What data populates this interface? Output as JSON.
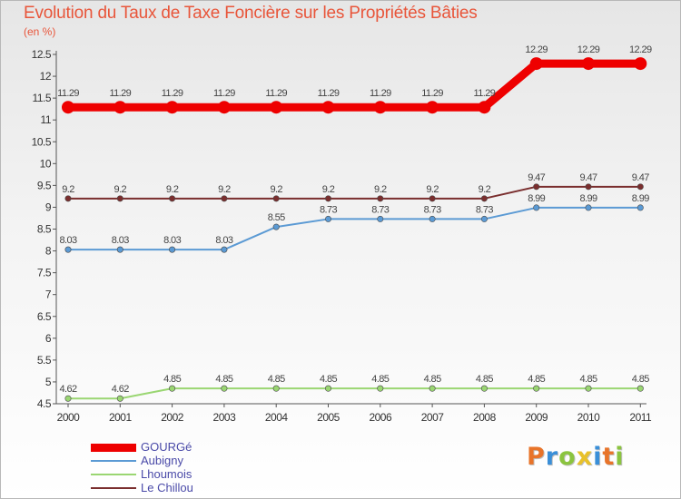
{
  "chart_data": {
    "type": "line",
    "title": "Evolution du Taux de Taxe Foncière sur les Propriétés Bâties",
    "ylabel": "(en %)",
    "xlabel": "",
    "categories": [
      "2000",
      "2001",
      "2002",
      "2003",
      "2004",
      "2005",
      "2006",
      "2007",
      "2008",
      "2009",
      "2010",
      "2011"
    ],
    "ylim": [
      4.5,
      12.5
    ],
    "yticks": [
      "4.5",
      "5",
      "5.5",
      "6",
      "6.5",
      "7",
      "7.5",
      "8",
      "8.5",
      "9",
      "9.5",
      "10",
      "10.5",
      "11",
      "11.5",
      "12",
      "12.5"
    ],
    "series": [
      {
        "name": "GOURGé",
        "color": "#ee0000",
        "values": [
          11.29,
          11.29,
          11.29,
          11.29,
          11.29,
          11.29,
          11.29,
          11.29,
          11.29,
          12.29,
          12.29,
          12.29
        ],
        "labels": [
          "11.29",
          "11.29",
          "11.29",
          "11.29",
          "11.29",
          "11.29",
          "11.29",
          "11.29",
          "11.29",
          "12.29",
          "12.29",
          "12.29"
        ]
      },
      {
        "name": "Aubigny",
        "color": "#5b9ad4",
        "values": [
          8.03,
          8.03,
          8.03,
          8.03,
          8.55,
          8.73,
          8.73,
          8.73,
          8.73,
          8.99,
          8.99,
          8.99
        ],
        "labels": [
          "8.03",
          "8.03",
          "8.03",
          "8.03",
          "8.55",
          "8.73",
          "8.73",
          "8.73",
          "8.73",
          "8.99",
          "8.99",
          "8.99"
        ]
      },
      {
        "name": "Lhoumois",
        "color": "#9ad672",
        "values": [
          4.62,
          4.62,
          4.85,
          4.85,
          4.85,
          4.85,
          4.85,
          4.85,
          4.85,
          4.85,
          4.85,
          4.85
        ],
        "labels": [
          "4.62",
          "4.62",
          "4.85",
          "4.85",
          "4.85",
          "4.85",
          "4.85",
          "4.85",
          "4.85",
          "4.85",
          "4.85",
          "4.85"
        ]
      },
      {
        "name": "Le Chillou",
        "color": "#7a2e2e",
        "values": [
          9.2,
          9.2,
          9.2,
          9.2,
          9.2,
          9.2,
          9.2,
          9.2,
          9.2,
          9.47,
          9.47,
          9.47
        ],
        "labels": [
          "9.2",
          "9.2",
          "9.2",
          "9.2",
          "9.2",
          "9.2",
          "9.2",
          "9.2",
          "9.2",
          "9.47",
          "9.47",
          "9.47"
        ]
      }
    ],
    "legend_position": "bottom-left",
    "grid": false
  },
  "branding": {
    "text": "Proxiti",
    "letters": [
      "P",
      "r",
      "o",
      "x",
      "i",
      "t",
      "i"
    ],
    "colors": [
      "#e8742a",
      "#3a8fd8",
      "#8bc43f",
      "#e8c12a",
      "#3a8fd8",
      "#e8742a",
      "#8bc43f"
    ]
  }
}
